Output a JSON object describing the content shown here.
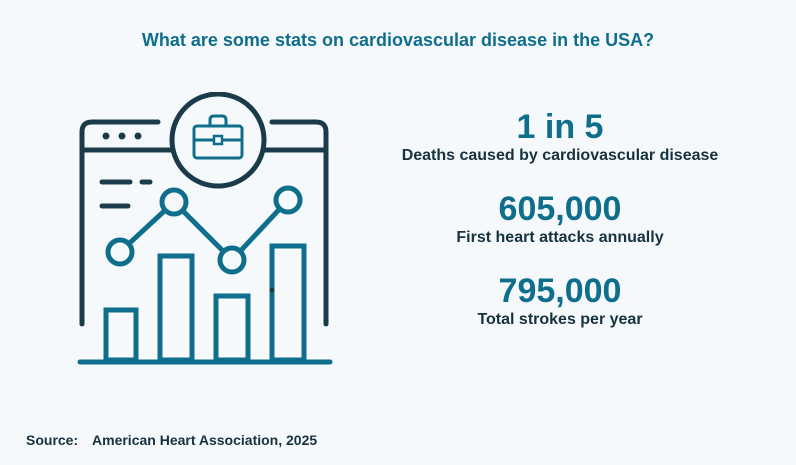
{
  "title": "What are some stats on cardiovascular disease in the USA?",
  "stats": [
    {
      "value": "1 in 5",
      "label": "Deaths caused by cardiovascular disease"
    },
    {
      "value": "605,000",
      "label": "First heart attacks annually"
    },
    {
      "value": "795,000",
      "label": "Total strokes per year"
    }
  ],
  "source": {
    "label": "Source:",
    "text": "American Heart Association, 2025"
  },
  "icons": {
    "illustration": "dashboard-chart-briefcase-icon"
  },
  "colors": {
    "background": "#f5f9fb",
    "accent": "#0f6e8c",
    "dark": "#1b3b4a",
    "text": "#16323f"
  }
}
